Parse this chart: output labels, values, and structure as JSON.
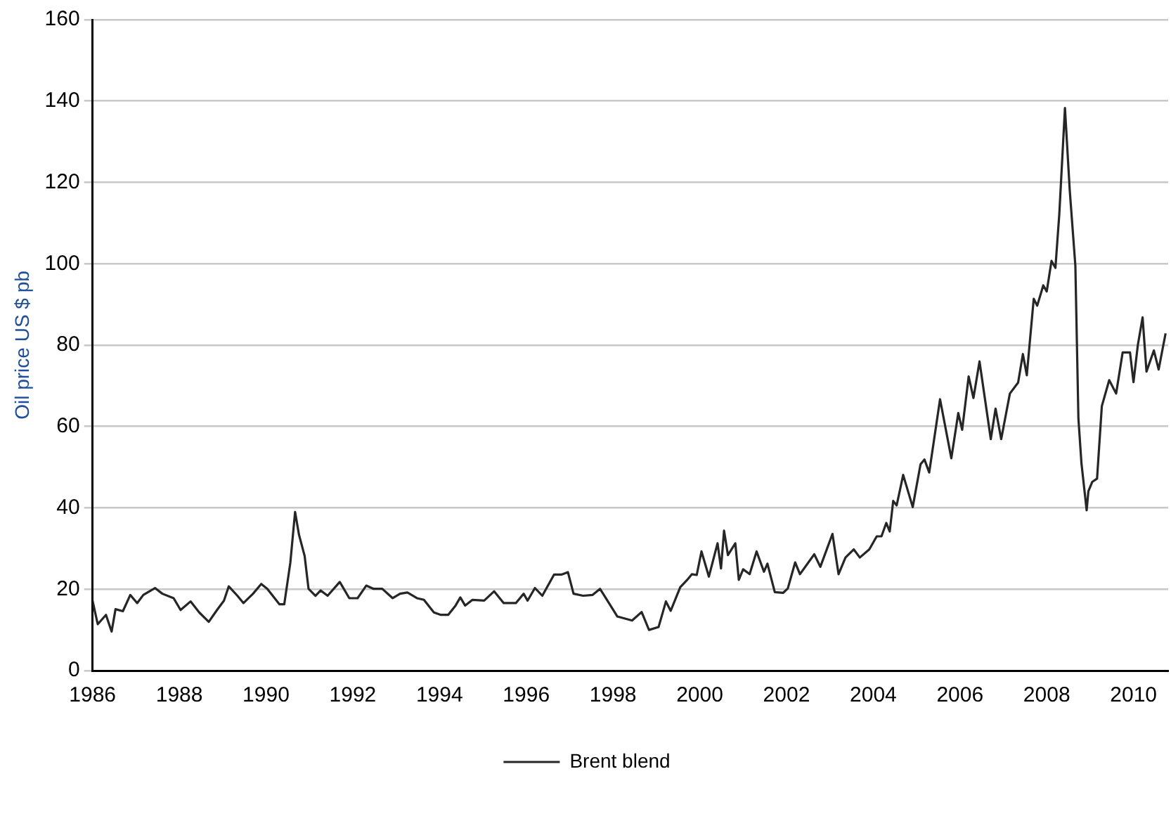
{
  "chart_data": {
    "type": "line",
    "ylabel": "Oil price US $ pb",
    "xlim": [
      1986,
      2010.8
    ],
    "xticks": [
      1986,
      1988,
      1990,
      1992,
      1994,
      1996,
      1998,
      2000,
      2002,
      2004,
      2006,
      2008,
      2010
    ],
    "ylim": [
      0,
      160
    ],
    "yticks": [
      0,
      20,
      40,
      60,
      80,
      100,
      120,
      140,
      160
    ],
    "grid": "y",
    "legend": "bottom",
    "marker": "none",
    "line_style": "solid",
    "series": [
      {
        "name": "Brent blend",
        "color": "#262626",
        "x": [
          1986.0,
          1986.12,
          1986.31,
          1986.44,
          1986.53,
          1986.7,
          1986.87,
          1987.03,
          1987.17,
          1987.44,
          1987.61,
          1987.87,
          1988.03,
          1988.26,
          1988.46,
          1988.68,
          1988.87,
          1989.03,
          1989.14,
          1989.34,
          1989.48,
          1989.7,
          1989.89,
          1990.03,
          1990.31,
          1990.42,
          1990.56,
          1990.67,
          1990.76,
          1990.89,
          1990.98,
          1991.14,
          1991.26,
          1991.42,
          1991.7,
          1991.92,
          1992.11,
          1992.31,
          1992.48,
          1992.68,
          1992.92,
          1993.09,
          1993.26,
          1993.48,
          1993.64,
          1993.87,
          1994.03,
          1994.2,
          1994.37,
          1994.48,
          1994.59,
          1994.76,
          1995.03,
          1995.26,
          1995.48,
          1995.76,
          1995.94,
          1996.03,
          1996.2,
          1996.37,
          1996.64,
          1996.81,
          1996.96,
          1997.09,
          1997.31,
          1997.53,
          1997.7,
          1998.0,
          1998.1,
          1998.44,
          1998.66,
          1998.83,
          1999.05,
          1999.22,
          1999.33,
          1999.55,
          1999.71,
          1999.82,
          1999.93,
          2000.04,
          2000.21,
          2000.41,
          2000.49,
          2000.56,
          2000.65,
          2000.82,
          2000.9,
          2001.0,
          2001.15,
          2001.31,
          2001.48,
          2001.56,
          2001.73,
          2001.92,
          2002.03,
          2002.2,
          2002.31,
          2002.64,
          2002.78,
          2003.06,
          2003.2,
          2003.36,
          2003.55,
          2003.69,
          2003.91,
          2004.08,
          2004.19,
          2004.3,
          2004.38,
          2004.46,
          2004.54,
          2004.69,
          2004.91,
          2005.09,
          2005.18,
          2005.29,
          2005.54,
          2005.8,
          2005.96,
          2006.05,
          2006.2,
          2006.31,
          2006.45,
          2006.71,
          2006.82,
          2006.95,
          2007.15,
          2007.34,
          2007.45,
          2007.54,
          2007.7,
          2007.78,
          2007.92,
          2008.0,
          2008.11,
          2008.2,
          2008.29,
          2008.42,
          2008.53,
          2008.66,
          2008.73,
          2008.8,
          2008.92,
          2008.96,
          2009.05,
          2009.16,
          2009.27,
          2009.44,
          2009.6,
          2009.75,
          2009.92,
          2010.0,
          2010.1,
          2010.21,
          2010.3,
          2010.47,
          2010.58,
          2010.74
        ],
        "values": [
          17.2,
          11.4,
          13.7,
          9.6,
          15.1,
          14.6,
          18.6,
          16.6,
          18.6,
          20.3,
          18.9,
          17.8,
          14.9,
          17,
          14.3,
          12,
          14.9,
          17.2,
          20.7,
          18.4,
          16.6,
          18.9,
          21.3,
          20.1,
          16.3,
          16.3,
          26.5,
          39,
          33.4,
          28.2,
          20.1,
          18.4,
          19.7,
          18.4,
          21.8,
          17.8,
          17.8,
          20.9,
          20.1,
          20.1,
          17.8,
          18.9,
          19.2,
          17.8,
          17.4,
          14.3,
          13.7,
          13.7,
          16,
          18,
          16,
          17.4,
          17.2,
          19.5,
          16.6,
          16.6,
          18.9,
          17.2,
          20.3,
          18.4,
          23.6,
          23.6,
          24.2,
          18.9,
          18.4,
          18.6,
          20.1,
          15,
          13.3,
          12.3,
          14.4,
          10,
          10.7,
          17,
          14.7,
          20.5,
          22.3,
          23.7,
          23.5,
          29.3,
          23.1,
          31.3,
          25.1,
          34.4,
          28.4,
          31.3,
          22.3,
          24.9,
          23.7,
          29.3,
          24.3,
          26.3,
          19.3,
          19.1,
          20.2,
          26.6,
          23.7,
          28.6,
          25.5,
          33.6,
          23.7,
          27.8,
          29.8,
          27.8,
          29.8,
          33,
          33,
          36.3,
          34.2,
          41.7,
          40.6,
          48.1,
          40.2,
          50.7,
          51.9,
          48.7,
          66.7,
          52.2,
          63.3,
          59.2,
          72.3,
          67,
          76,
          56.9,
          64.4,
          56.9,
          68.1,
          70.8,
          77.8,
          72.6,
          91.4,
          89.7,
          94.7,
          93.2,
          100.7,
          99,
          112.3,
          138.3,
          118.1,
          99.5,
          62,
          51,
          39.4,
          44.1,
          46.4,
          47.2,
          65,
          71.4,
          68.1,
          78.2,
          78.2,
          70.9,
          80,
          86.8,
          73.5,
          78.7,
          74,
          82.9
        ]
      }
    ]
  }
}
